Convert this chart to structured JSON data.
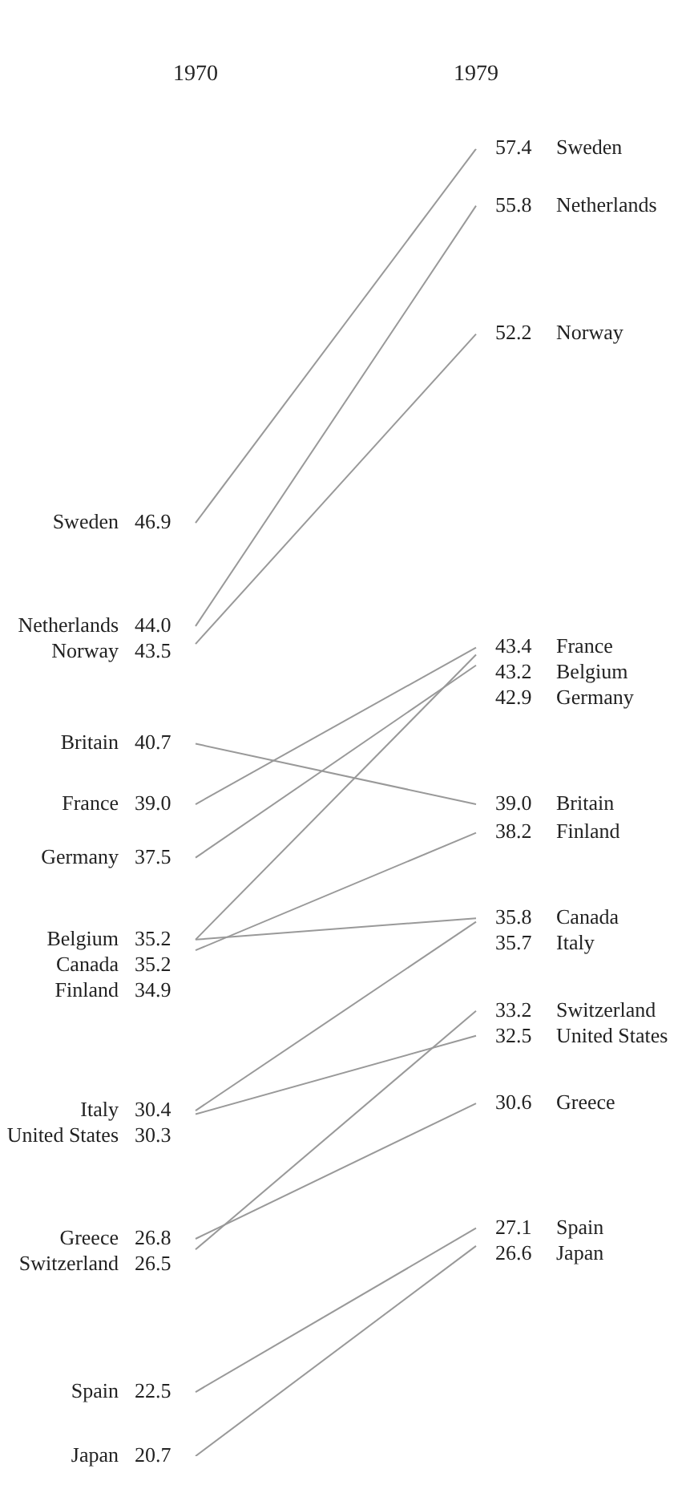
{
  "chart_data": {
    "type": "line",
    "categories": [
      "1970",
      "1979"
    ],
    "tick_labels": "x",
    "legend": false,
    "grid": false,
    "marker": "none",
    "line_style": "solid",
    "series": [
      {
        "name": "Sweden",
        "color": "#999999",
        "values": [
          46.9,
          57.4
        ],
        "value_labels": [
          "46.9",
          "57.4"
        ]
      },
      {
        "name": "Netherlands",
        "color": "#999999",
        "values": [
          44.0,
          55.8
        ],
        "value_labels": [
          "44.0",
          "55.8"
        ]
      },
      {
        "name": "Norway",
        "color": "#999999",
        "values": [
          43.5,
          52.2
        ],
        "value_labels": [
          "43.5",
          "52.2"
        ]
      },
      {
        "name": "Britain",
        "color": "#999999",
        "values": [
          40.7,
          39.0
        ],
        "value_labels": [
          "40.7",
          "39.0"
        ]
      },
      {
        "name": "France",
        "color": "#999999",
        "values": [
          39.0,
          43.4
        ],
        "value_labels": [
          "39.0",
          "43.4"
        ]
      },
      {
        "name": "Germany",
        "color": "#999999",
        "values": [
          37.5,
          42.9
        ],
        "value_labels": [
          "37.5",
          "42.9"
        ]
      },
      {
        "name": "Belgium",
        "color": "#999999",
        "values": [
          35.2,
          43.2
        ],
        "value_labels": [
          "35.2",
          "43.2"
        ]
      },
      {
        "name": "Canada",
        "color": "#999999",
        "values": [
          35.2,
          35.8
        ],
        "value_labels": [
          "35.2",
          "35.8"
        ]
      },
      {
        "name": "Finland",
        "color": "#999999",
        "values": [
          34.9,
          38.2
        ],
        "value_labels": [
          "34.9",
          "38.2"
        ]
      },
      {
        "name": "Italy",
        "color": "#999999",
        "values": [
          30.4,
          35.7
        ],
        "value_labels": [
          "30.4",
          "35.7"
        ]
      },
      {
        "name": "United States",
        "color": "#999999",
        "values": [
          30.3,
          32.5
        ],
        "value_labels": [
          "30.3",
          "32.5"
        ]
      },
      {
        "name": "Greece",
        "color": "#999999",
        "values": [
          26.8,
          30.6
        ],
        "value_labels": [
          "26.8",
          "30.6"
        ]
      },
      {
        "name": "Switzerland",
        "color": "#999999",
        "values": [
          26.5,
          33.2
        ],
        "value_labels": [
          "26.5",
          "33.2"
        ]
      },
      {
        "name": "Spain",
        "color": "#999999",
        "values": [
          22.5,
          27.1
        ],
        "value_labels": [
          "22.5",
          "27.1"
        ]
      },
      {
        "name": "Japan",
        "color": "#999999",
        "values": [
          20.7,
          26.6
        ],
        "value_labels": [
          "20.7",
          "26.6"
        ]
      }
    ]
  }
}
